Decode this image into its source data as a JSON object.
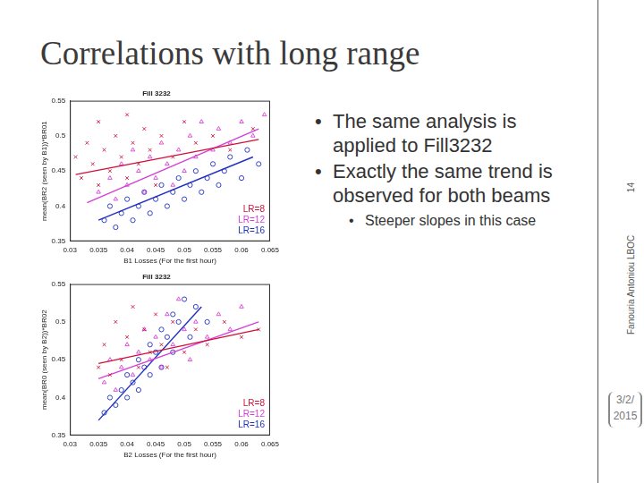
{
  "slide": {
    "title": "Correlations with long range",
    "bullets": [
      {
        "text": "The same analysis is applied to Fill3232",
        "level": 1
      },
      {
        "text": "Exactly the same trend is observed for both beams",
        "level": 1
      },
      {
        "text": "Steeper slopes in this case",
        "level": 2
      }
    ],
    "footer": {
      "author": "Fanouria Antoniou LBOC",
      "page": "14",
      "date_lines": [
        "3/2/",
        "2015"
      ]
    }
  },
  "chart_data": [
    {
      "type": "scatter",
      "title": "Fill 3232",
      "x_label": "B1 Losses (For the first hour)",
      "y_label": "mean(BR2 (seen by B1))*BR01",
      "xlim": [
        0.03,
        0.065
      ],
      "xticks": [
        0.03,
        0.035,
        0.04,
        0.045,
        0.05,
        0.055,
        0.06,
        0.065
      ],
      "ylim": [
        0.35,
        0.55
      ],
      "yticks": [
        0.35,
        0.4,
        0.45,
        0.5,
        0.55
      ],
      "grid": false,
      "legend": "lower right",
      "series": [
        {
          "name": "LR=8",
          "color": "#d0103a",
          "marker": "x",
          "x": [
            0.031,
            0.032,
            0.033,
            0.034,
            0.035,
            0.035,
            0.036,
            0.037,
            0.038,
            0.039,
            0.04,
            0.04,
            0.041,
            0.042,
            0.043,
            0.044,
            0.045,
            0.046,
            0.048,
            0.05,
            0.052,
            0.055,
            0.058,
            0.062
          ],
          "values": [
            0.47,
            0.44,
            0.49,
            0.46,
            0.52,
            0.43,
            0.48,
            0.45,
            0.5,
            0.47,
            0.53,
            0.44,
            0.49,
            0.46,
            0.51,
            0.48,
            0.43,
            0.5,
            0.47,
            0.52,
            0.49,
            0.5,
            0.48,
            0.51
          ],
          "fit": {
            "x": [
              0.031,
              0.063
            ],
            "values": [
              0.445,
              0.495
            ]
          }
        },
        {
          "name": "LR=12",
          "color": "#d63fd6",
          "marker": "triangle",
          "x": [
            0.035,
            0.037,
            0.038,
            0.039,
            0.04,
            0.041,
            0.042,
            0.043,
            0.044,
            0.045,
            0.046,
            0.047,
            0.048,
            0.049,
            0.05,
            0.051,
            0.052,
            0.053,
            0.055,
            0.056,
            0.058,
            0.06,
            0.062,
            0.064
          ],
          "values": [
            0.42,
            0.44,
            0.41,
            0.46,
            0.43,
            0.48,
            0.45,
            0.42,
            0.47,
            0.44,
            0.49,
            0.46,
            0.43,
            0.48,
            0.45,
            0.5,
            0.47,
            0.52,
            0.48,
            0.51,
            0.49,
            0.52,
            0.5,
            0.53
          ],
          "fit": {
            "x": [
              0.033,
              0.063
            ],
            "values": [
              0.405,
              0.51
            ]
          }
        },
        {
          "name": "LR=16",
          "color": "#2030c0",
          "marker": "circle",
          "x": [
            0.036,
            0.037,
            0.038,
            0.039,
            0.04,
            0.041,
            0.042,
            0.043,
            0.044,
            0.045,
            0.046,
            0.047,
            0.048,
            0.049,
            0.05,
            0.051,
            0.052,
            0.053,
            0.054,
            0.055,
            0.056,
            0.057,
            0.058,
            0.06,
            0.061,
            0.063
          ],
          "values": [
            0.38,
            0.4,
            0.37,
            0.39,
            0.41,
            0.38,
            0.4,
            0.42,
            0.39,
            0.41,
            0.43,
            0.4,
            0.42,
            0.44,
            0.41,
            0.43,
            0.45,
            0.42,
            0.44,
            0.46,
            0.43,
            0.45,
            0.47,
            0.44,
            0.48,
            0.46
          ],
          "fit": {
            "x": [
              0.035,
              0.062
            ],
            "values": [
              0.38,
              0.47
            ]
          }
        }
      ]
    },
    {
      "type": "scatter",
      "title": "Fill 3232",
      "x_label": "B2 Losses (For the first hour)",
      "y_label": "mean(BR0 (seen by B2))*BR02",
      "xlim": [
        0.03,
        0.065
      ],
      "xticks": [
        0.03,
        0.035,
        0.04,
        0.045,
        0.05,
        0.055,
        0.06,
        0.065
      ],
      "ylim": [
        0.35,
        0.55
      ],
      "yticks": [
        0.35,
        0.4,
        0.45,
        0.5,
        0.55
      ],
      "grid": false,
      "legend": "lower right",
      "series": [
        {
          "name": "LR=8",
          "color": "#d0103a",
          "marker": "x",
          "x": [
            0.035,
            0.036,
            0.037,
            0.038,
            0.039,
            0.04,
            0.041,
            0.042,
            0.043,
            0.044,
            0.045,
            0.046,
            0.047,
            0.048,
            0.05,
            0.052,
            0.054,
            0.057,
            0.06,
            0.063
          ],
          "values": [
            0.44,
            0.47,
            0.43,
            0.5,
            0.45,
            0.48,
            0.52,
            0.44,
            0.49,
            0.46,
            0.51,
            0.47,
            0.44,
            0.5,
            0.46,
            0.49,
            0.47,
            0.5,
            0.48,
            0.49
          ],
          "fit": {
            "x": [
              0.035,
              0.063
            ],
            "values": [
              0.445,
              0.49
            ]
          }
        },
        {
          "name": "LR=12",
          "color": "#d63fd6",
          "marker": "triangle",
          "x": [
            0.036,
            0.037,
            0.038,
            0.039,
            0.04,
            0.041,
            0.042,
            0.043,
            0.044,
            0.045,
            0.046,
            0.047,
            0.048,
            0.049,
            0.05,
            0.051,
            0.052,
            0.054,
            0.056,
            0.058,
            0.06
          ],
          "values": [
            0.42,
            0.45,
            0.41,
            0.44,
            0.47,
            0.43,
            0.46,
            0.49,
            0.45,
            0.48,
            0.44,
            0.51,
            0.47,
            0.53,
            0.49,
            0.45,
            0.5,
            0.48,
            0.51,
            0.49,
            0.52
          ],
          "fit": {
            "x": [
              0.035,
              0.063
            ],
            "values": [
              0.425,
              0.5
            ]
          }
        },
        {
          "name": "LR=16",
          "color": "#2030c0",
          "marker": "circle",
          "x": [
            0.036,
            0.037,
            0.038,
            0.039,
            0.04,
            0.04,
            0.041,
            0.042,
            0.042,
            0.043,
            0.044,
            0.044,
            0.045,
            0.046,
            0.046,
            0.047,
            0.048,
            0.048,
            0.049,
            0.05,
            0.051,
            0.052,
            0.054
          ],
          "values": [
            0.38,
            0.4,
            0.39,
            0.41,
            0.43,
            0.4,
            0.42,
            0.45,
            0.41,
            0.44,
            0.47,
            0.43,
            0.46,
            0.49,
            0.44,
            0.48,
            0.51,
            0.46,
            0.5,
            0.53,
            0.48,
            0.52,
            0.5
          ],
          "fit": {
            "x": [
              0.035,
              0.053
            ],
            "values": [
              0.37,
              0.52
            ]
          }
        }
      ]
    }
  ]
}
